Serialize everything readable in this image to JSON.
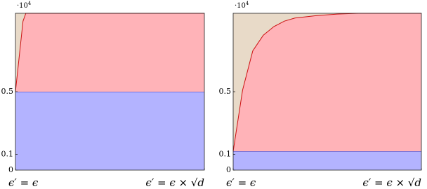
{
  "chart_data": [
    {
      "type": "stacked_area",
      "multiplier": {
        "base": "·10",
        "exponent": "4"
      },
      "x": [
        0,
        0.04,
        0.055,
        1
      ],
      "xlim": [
        0,
        1
      ],
      "xticks": [
        {
          "value": 0,
          "label": "ϵ′ = ϵ"
        },
        {
          "value": 1,
          "label": "ϵ′ = ϵ × √d"
        }
      ],
      "ylim": [
        0,
        1
      ],
      "yticks": [
        0,
        0.1,
        0.5
      ],
      "background": "#e8dac8",
      "series": [
        {
          "color": "#b3b3ff",
          "line_color": "#3030c0",
          "values": [
            0.5,
            0.5,
            0.5,
            0.5
          ]
        },
        {
          "color": "#ffb3b8",
          "line_color": "#cc1010",
          "values": [
            0,
            0.45,
            0.5,
            0.5
          ]
        }
      ]
    },
    {
      "type": "stacked_area",
      "multiplier": {
        "base": "·10",
        "exponent": "4"
      },
      "x": [
        0,
        0.05,
        0.104,
        0.16,
        0.216,
        0.272,
        0.328,
        0.44,
        0.552,
        0.664,
        1
      ],
      "xlim": [
        0,
        1
      ],
      "xticks": [
        {
          "value": 0,
          "label": "ϵ′ = ϵ"
        },
        {
          "value": 1,
          "label": "ϵ′ = ϵ × √d"
        }
      ],
      "ylim": [
        0,
        1
      ],
      "yticks": [
        0,
        0.1,
        0.5
      ],
      "background": "#e8dac8",
      "series": [
        {
          "color": "#b3b3ff",
          "line_color": "#3030c0",
          "values": [
            0.12,
            0.12,
            0.12,
            0.12,
            0.12,
            0.12,
            0.12,
            0.12,
            0.12,
            0.12,
            0.12
          ]
        },
        {
          "color": "#ffb3b8",
          "line_color": "#cc1010",
          "values": [
            0,
            0.39,
            0.64,
            0.74,
            0.795,
            0.83,
            0.85,
            0.865,
            0.875,
            0.88,
            0.88
          ]
        }
      ]
    }
  ]
}
